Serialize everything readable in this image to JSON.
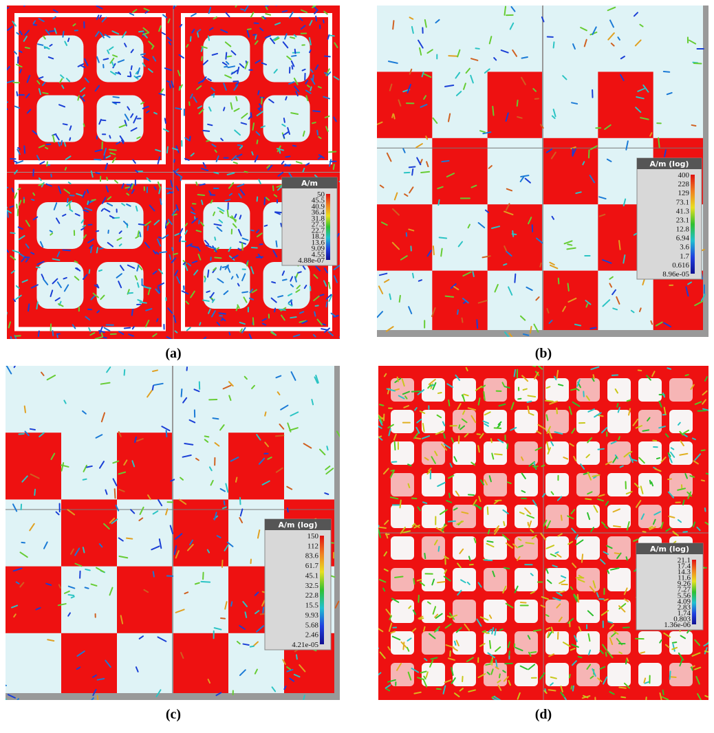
{
  "panels": [
    {
      "label": "(a)",
      "colorbar": {
        "title": "A/m",
        "labels": [
          "50",
          "45.5",
          "40.9",
          "36.4",
          "31.8",
          "27.3",
          "22.7",
          "18.2",
          "13.6",
          "9.09",
          "4.55",
          "4.88e-07"
        ]
      }
    },
    {
      "label": "(b)",
      "colorbar": {
        "title": "A/m (log)",
        "labels": [
          "400",
          "228",
          "129",
          "73.1",
          "41.3",
          "23.1",
          "12.8",
          "6.94",
          "3.6",
          "1.7",
          "0.616",
          "8.96e-05"
        ]
      }
    },
    {
      "label": "(c)",
      "colorbar": {
        "title": "A/m (log)",
        "labels": [
          "150",
          "112",
          "83.6",
          "61.7",
          "45.1",
          "32.5",
          "22.8",
          "15.5",
          "9.93",
          "5.68",
          "2.46",
          "4.21e-05"
        ]
      }
    },
    {
      "label": "(d)",
      "colorbar": {
        "title": "A/m (log)",
        "labels": [
          "21.1",
          "17.4",
          "14.3",
          "11.6",
          "9.26",
          "7.27",
          "5.56",
          "4.09",
          "2.83",
          "1.74",
          "0.803",
          "1.36e-06"
        ]
      }
    }
  ]
}
